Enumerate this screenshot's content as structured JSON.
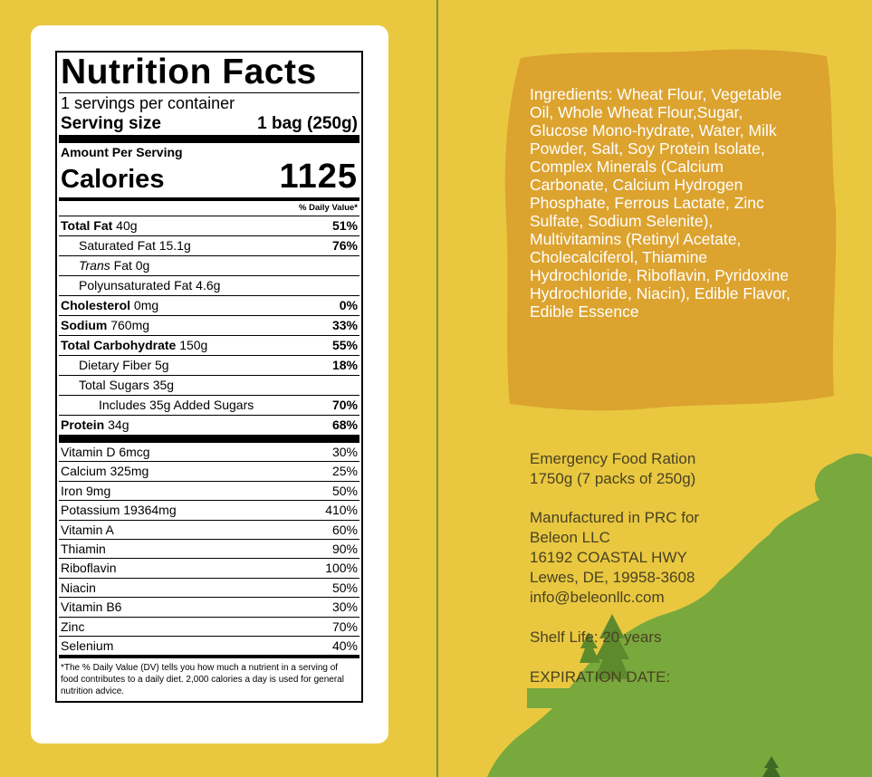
{
  "nutrition": {
    "title": "Nutrition Facts",
    "servings": "1 servings per container",
    "serving_size_label": "Serving size",
    "serving_size_value": "1 bag (250g)",
    "amount_per_serving": "Amount Per Serving",
    "calories_label": "Calories",
    "calories_value": "1125",
    "dv_header": "% Daily Value*",
    "rows": [
      {
        "bold": "Total Fat",
        "rest": " 40g",
        "pct": "51%"
      },
      {
        "bold": "",
        "rest": "Saturated Fat 15.1g",
        "pct": "76%"
      },
      {
        "italic": "Trans",
        "rest": " Fat 0g",
        "pct": ""
      },
      {
        "bold": "",
        "rest": "Polyunsaturated Fat 4.6g",
        "pct": ""
      },
      {
        "bold": "Cholesterol",
        "rest": " 0mg",
        "pct": "0%"
      },
      {
        "bold": "Sodium",
        "rest": " 760mg",
        "pct": "33%"
      },
      {
        "bold": "Total Carbohydrate",
        "rest": " 150g",
        "pct": "55%"
      },
      {
        "bold": "",
        "rest": "Dietary Fiber 5g",
        "pct": "18%"
      },
      {
        "bold": "",
        "rest": "Total Sugars 35g",
        "pct": ""
      },
      {
        "bold": "",
        "rest": "Includes 35g Added Sugars",
        "pct": "70%"
      },
      {
        "bold": "Protein",
        "rest": " 34g",
        "pct": "68%"
      }
    ],
    "vitamins": [
      {
        "name": "Vitamin D 6mcg",
        "pct": "30%"
      },
      {
        "name": "Calcium 325mg",
        "pct": "25%"
      },
      {
        "name": "Iron 9mg",
        "pct": "50%"
      },
      {
        "name": "Potassium 19364mg",
        "pct": "410%"
      },
      {
        "name": "Vitamin A",
        "pct": "60%"
      },
      {
        "name": "Thiamin",
        "pct": "90%"
      },
      {
        "name": "Riboflavin",
        "pct": "100%"
      },
      {
        "name": "Niacin",
        "pct": "50%"
      },
      {
        "name": "Vitamin B6",
        "pct": "30%"
      },
      {
        "name": "Zinc",
        "pct": "70%"
      },
      {
        "name": "Selenium",
        "pct": "40%"
      }
    ],
    "footnote": "*The % Daily Value (DV) tells you how much a nutrient in a serving of food contributes to a daily diet. 2,000 calories a day is used for general nutrition advice."
  },
  "ingredients": "Ingredients: Wheat Flour, Vegetable Oil, Whole Wheat Flour,Sugar, Glucose Mono-hydrate, Water, Milk Powder, Salt, Soy Protein Isolate, Complex Minerals (Calcium Carbonate, Calcium Hydrogen Phosphate, Ferrous Lactate, Zinc Sulfate, Sodium Selenite), Multivitamins (Retinyl Acetate, Cholecalciferol, Thiamine Hydrochloride, Riboflavin, Pyridoxine Hydrochloride, Niacin), Edible Flavor, Edible Essence",
  "product": {
    "line1": "Emergency Food Ration",
    "line2": "1750g (7 packs of 250g)"
  },
  "manufacturer": {
    "line1": "Manufactured in PRC for",
    "line2": "Beleon LLC",
    "line3": "16192 COASTAL HWY",
    "line4": "Lewes, DE, 19958-3608",
    "line5": "info@beleonllc.com"
  },
  "shelf_life": "Shelf Life: 20 years",
  "expiration_label": "EXPIRATION DATE:",
  "colors": {
    "background": "#e9c840",
    "ingredients_blob": "#dca32f",
    "hill": "#79a83d",
    "tree": "#5d8a2c"
  }
}
